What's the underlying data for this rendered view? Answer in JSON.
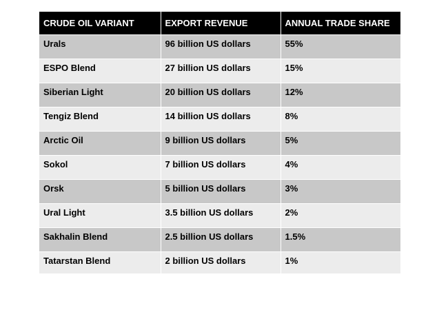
{
  "chart_data": {
    "type": "table",
    "columns": [
      "CRUDE OIL VARIANT",
      "EXPORT REVENUE",
      "ANNUAL TRADE SHARE"
    ],
    "rows": [
      [
        "Urals",
        "96 billion US dollars",
        "55%"
      ],
      [
        "ESPO Blend",
        "27 billion US dollars",
        "15%"
      ],
      [
        "Siberian Light",
        "20 billion US dollars",
        "12%"
      ],
      [
        "Tengiz Blend",
        "14 billion US dollars",
        "8%"
      ],
      [
        "Arctic Oil",
        "9 billion US dollars",
        "5%"
      ],
      [
        "Sokol",
        "7 billion US dollars",
        "4%"
      ],
      [
        "Orsk",
        "5 billion US dollars",
        "3%"
      ],
      [
        "Ural Light",
        "3.5 billion US dollars",
        "2%"
      ],
      [
        "Sakhalin Blend",
        "2.5 billion US dollars",
        "1.5%"
      ],
      [
        "Tatarstan Blend",
        "2 billion US dollars",
        "1%"
      ]
    ],
    "colors": {
      "header_bg": "#000000",
      "header_text": "#ffffff",
      "row_odd": "#c8c8c8",
      "row_even": "#ececec"
    }
  }
}
